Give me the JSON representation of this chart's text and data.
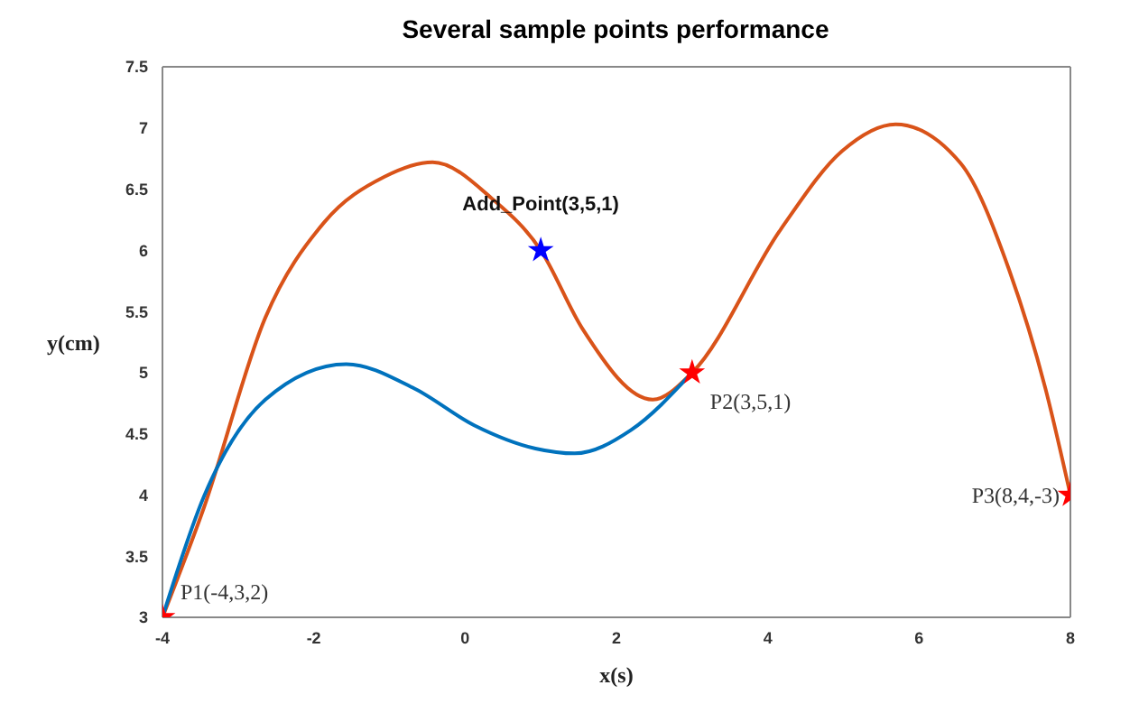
{
  "chart_data": {
    "type": "line",
    "title": "Several sample points performance",
    "xlabel": "x(s)",
    "ylabel": "y(cm)",
    "xlim": [
      -4,
      8
    ],
    "xticks": [
      -4,
      -2,
      0,
      2,
      4,
      6,
      8
    ],
    "ylim": [
      3,
      7.5
    ],
    "yticks": [
      3,
      3.5,
      4,
      4.5,
      5,
      5.5,
      6,
      6.5,
      7,
      7.5
    ],
    "grid": false,
    "line_style": "solid",
    "series": [
      {
        "color": "#d95319",
        "x": [
          -4,
          -3.45,
          -2.64,
          -1.86,
          -1.07,
          -0.43,
          0.36,
          1,
          1.55,
          2.48,
          3,
          4.17,
          4.98,
          5.69,
          6.55,
          7.19,
          7.67,
          8
        ],
        "values": [
          3,
          3.9,
          5.45,
          6.23,
          6.6,
          6.72,
          6.42,
          6,
          5.36,
          4.78,
          5,
          6.17,
          6.81,
          7.03,
          6.71,
          5.84,
          4.87,
          4
        ]
      },
      {
        "color": "#0072bd",
        "x": [
          -4,
          -3.45,
          -2.64,
          -1.57,
          -0.67,
          0.12,
          0.93,
          1.45,
          2.19,
          3
        ],
        "values": [
          3,
          3.99,
          4.78,
          5.07,
          4.87,
          4.57,
          4.38,
          4.34,
          4.53,
          5
        ]
      },
      {
        "type": "scatter",
        "marker": "star",
        "color": "#ff0000",
        "x": [
          -4,
          3,
          8
        ],
        "values": [
          3,
          5,
          4
        ]
      },
      {
        "type": "scatter",
        "marker": "star",
        "color": "#0000ff",
        "x": [
          1
        ],
        "values": [
          6
        ]
      }
    ],
    "annotations": [
      {
        "text": "P1(-4,3,2)",
        "x": -4,
        "y": 3
      },
      {
        "text": "Add_Point(3,5,1)",
        "x": 1,
        "y": 6
      },
      {
        "text": "P2(3,5,1)",
        "x": 3,
        "y": 5
      },
      {
        "text": "P3(8,4,-3)",
        "x": 8,
        "y": 4
      }
    ]
  }
}
